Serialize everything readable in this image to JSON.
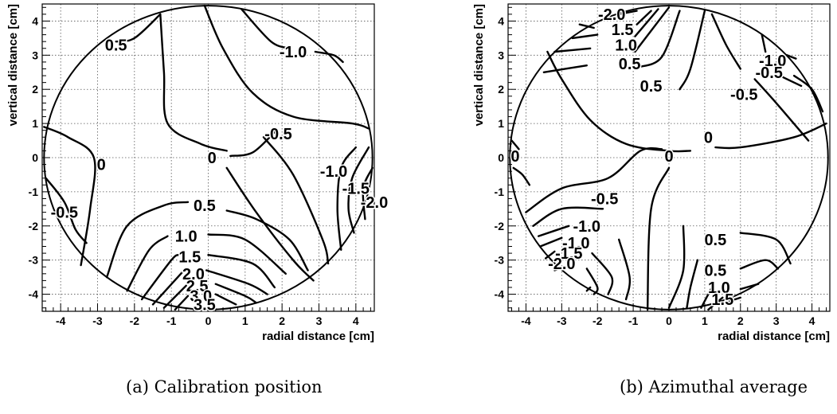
{
  "chart_data": [
    {
      "type": "contour",
      "xlabel": "radial distance [cm]",
      "ylabel": "vertical distance [cm]",
      "xlim": [
        -4.5,
        4.5
      ],
      "ylim": [
        -4.5,
        4.5
      ],
      "xticks": [
        -4,
        -3,
        -2,
        -1,
        0,
        1,
        2,
        3,
        4
      ],
      "yticks": [
        -4,
        -3,
        -2,
        -1,
        0,
        1,
        2,
        3,
        4
      ],
      "grid": true,
      "boundary": "circle of radius 4.45 cm",
      "contour_labels": [
        {
          "text": "0.5",
          "x": -2.5,
          "y": 3.3
        },
        {
          "text": "-1.0",
          "x": 2.3,
          "y": 3.1
        },
        {
          "text": "-0.5",
          "x": 1.9,
          "y": 0.7
        },
        {
          "text": "0",
          "x": -2.9,
          "y": -0.2
        },
        {
          "text": "0",
          "x": 0.1,
          "y": 0.0
        },
        {
          "text": "-1.0",
          "x": 3.4,
          "y": -0.4
        },
        {
          "text": "-1.5",
          "x": 4.0,
          "y": -0.9
        },
        {
          "text": "-2.0",
          "x": 4.5,
          "y": -1.3
        },
        {
          "text": "-0.5",
          "x": -3.9,
          "y": -1.6
        },
        {
          "text": "0.5",
          "x": -0.1,
          "y": -1.4
        },
        {
          "text": "1.0",
          "x": -0.6,
          "y": -2.3
        },
        {
          "text": "1.5",
          "x": -0.5,
          "y": -2.9
        },
        {
          "text": "2.0",
          "x": -0.4,
          "y": -3.4
        },
        {
          "text": "2.5",
          "x": -0.3,
          "y": -3.75
        },
        {
          "text": "3.0",
          "x": -0.2,
          "y": -4.05
        },
        {
          "text": "3.5",
          "x": -0.1,
          "y": -4.3
        }
      ],
      "caption": "(a) Calibration position"
    },
    {
      "type": "contour",
      "xlabel": "radial distance [cm]",
      "ylabel": "vertical distance [cm]",
      "xlim": [
        -4.5,
        4.5
      ],
      "ylim": [
        -4.5,
        4.5
      ],
      "xticks": [
        -4,
        -3,
        -2,
        -1,
        0,
        1,
        2,
        3,
        4
      ],
      "yticks": [
        -4,
        -3,
        -2,
        -1,
        0,
        1,
        2,
        3,
        4
      ],
      "grid": true,
      "boundary": "circle of radius 4.45 cm",
      "contour_labels": [
        {
          "text": "-2.0",
          "x": -1.6,
          "y": 4.2
        },
        {
          "text": "1.5",
          "x": -1.3,
          "y": 3.75
        },
        {
          "text": "1.0",
          "x": -1.2,
          "y": 3.3
        },
        {
          "text": "0.5",
          "x": -1.1,
          "y": 2.75
        },
        {
          "text": "0.5",
          "x": -0.5,
          "y": 2.1
        },
        {
          "text": "-1.0",
          "x": 2.9,
          "y": 2.85
        },
        {
          "text": "-0.5",
          "x": 2.8,
          "y": 2.5
        },
        {
          "text": "-0.5",
          "x": 2.1,
          "y": 1.85
        },
        {
          "text": "0",
          "x": 1.1,
          "y": 0.6
        },
        {
          "text": "0",
          "x": -4.3,
          "y": 0.05
        },
        {
          "text": "0",
          "x": 0.0,
          "y": 0.05
        },
        {
          "text": "-0.5",
          "x": -1.8,
          "y": -1.2
        },
        {
          "text": "-1.0",
          "x": -2.3,
          "y": -2.0
        },
        {
          "text": "-1.0",
          "x": -2.6,
          "y": -2.5
        },
        {
          "text": "-1.5",
          "x": -2.8,
          "y": -2.8
        },
        {
          "text": "-2.0",
          "x": -3.0,
          "y": -3.1
        },
        {
          "text": "0.5",
          "x": 1.3,
          "y": -2.4
        },
        {
          "text": "0.5",
          "x": 1.3,
          "y": -3.3
        },
        {
          "text": "1.0",
          "x": 1.4,
          "y": -3.8
        },
        {
          "text": "1.5",
          "x": 1.5,
          "y": -4.15
        }
      ],
      "caption": "(b) Azimuthal average"
    }
  ]
}
